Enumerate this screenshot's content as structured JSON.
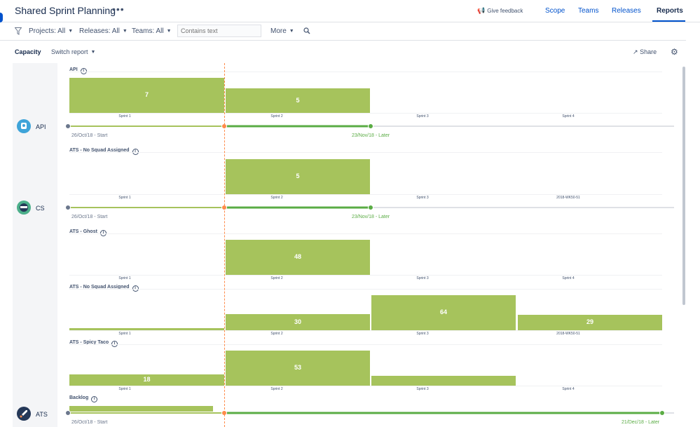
{
  "header": {
    "title": "Shared Sprint Planning",
    "more_glyph": "•••",
    "feedback": "Give feedback",
    "tabs": [
      {
        "label": "Scope"
      },
      {
        "label": "Teams"
      },
      {
        "label": "Releases"
      },
      {
        "label": "Reports",
        "active": true
      }
    ]
  },
  "filters": {
    "projects": "Projects: All",
    "releases": "Releases: All",
    "teams": "Teams: All",
    "text_placeholder": "Contains text",
    "more": "More"
  },
  "subbar": {
    "report": "Capacity",
    "switch": "Switch report",
    "share": "Share"
  },
  "teams": [
    {
      "name": "API"
    },
    {
      "name": "CS"
    },
    {
      "name": "ATS"
    }
  ],
  "sections": [
    {
      "label": "API",
      "sprints": [
        "Sprint 1",
        "Sprint 2",
        "Sprint 3",
        "Sprint 4"
      ],
      "values": [
        "7",
        "5",
        "",
        ""
      ]
    },
    {
      "label": "ATS - No Squad Assigned",
      "sprints": [
        "Sprint 1",
        "Sprint 2",
        "Sprint 3",
        "2018-WK50-51"
      ],
      "values": [
        "",
        "5",
        "",
        ""
      ]
    },
    {
      "label": "ATS - Ghost",
      "sprints": [
        "Sprint 1",
        "Sprint 2",
        "Sprint 3",
        "Sprint 4"
      ],
      "values": [
        "",
        "48",
        "",
        ""
      ]
    },
    {
      "label": "ATS - No Squad Assigned",
      "sprints": [
        "Sprint 1",
        "Sprint 2",
        "Sprint 3",
        "2018-WK50-51"
      ],
      "values": [
        "",
        "30",
        "64",
        "29"
      ]
    },
    {
      "label": "ATS - Spicy Taco",
      "sprints": [
        "Sprint 1",
        "Sprint 2",
        "Sprint 3",
        "Sprint 4"
      ],
      "values": [
        "18",
        "53",
        "",
        ""
      ]
    },
    {
      "label": "Backlog",
      "sprints": [],
      "values": []
    }
  ],
  "timelines": [
    {
      "start": "26/Oct/18 - Start",
      "end": "23/Nov/18 - Later"
    },
    {
      "start": "26/Oct/18 - Start",
      "end": "23/Nov/18 - Later"
    },
    {
      "start": "26/Oct/18 - Start",
      "end": "21/Dec/18 - Later"
    }
  ],
  "colors": {
    "bar": "#a6c35c",
    "accent": "#0052cc",
    "today_line": "#ff8b4a",
    "timeline_active": "#5aac44"
  }
}
